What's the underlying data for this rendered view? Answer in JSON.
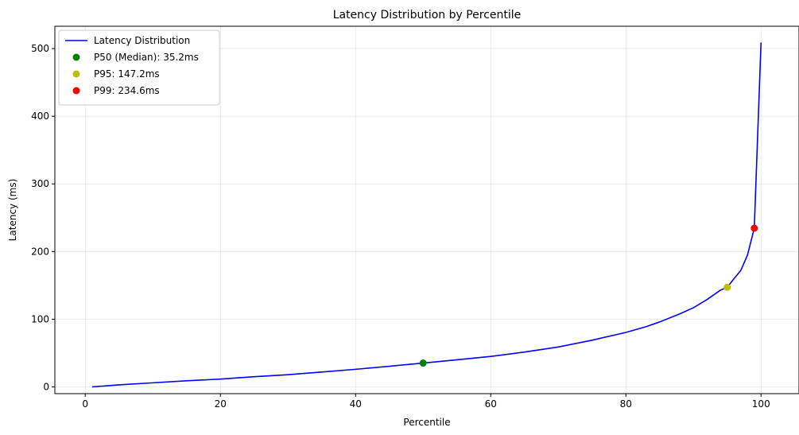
{
  "chart_data": {
    "type": "line",
    "title": "Latency Distribution by Percentile",
    "xlabel": "Percentile",
    "ylabel": "Latency (ms)",
    "xlim": [
      -4.5,
      105.5
    ],
    "ylim": [
      -10,
      533
    ],
    "xticks": [
      0,
      20,
      40,
      60,
      80,
      100
    ],
    "yticks": [
      0,
      100,
      200,
      300,
      400,
      500
    ],
    "grid": true,
    "legend_position": "top-left",
    "series": [
      {
        "name": "Latency Distribution",
        "color": "#0000ff",
        "x": [
          1,
          5,
          10,
          15,
          20,
          25,
          30,
          35,
          40,
          45,
          50,
          55,
          60,
          65,
          70,
          75,
          80,
          83,
          85,
          88,
          90,
          92,
          94,
          95,
          96,
          97,
          98,
          99,
          100
        ],
        "y": [
          0,
          3,
          6,
          9,
          11.5,
          15,
          18,
          22,
          26,
          30.5,
          35.2,
          40,
          45,
          51.5,
          59,
          69,
          80.5,
          89,
          96,
          108,
          117,
          129,
          143,
          147.2,
          160,
          172,
          195,
          234.6,
          509
        ]
      }
    ],
    "markers": [
      {
        "name": "P50 (Median): 35.2ms",
        "x": 50,
        "y": 35.2,
        "color": "#008000"
      },
      {
        "name": "P95: 147.2ms",
        "x": 95,
        "y": 147.2,
        "color": "#bfbf00"
      },
      {
        "name": "P99: 234.6ms",
        "x": 99,
        "y": 234.6,
        "color": "#ff0000"
      }
    ]
  }
}
